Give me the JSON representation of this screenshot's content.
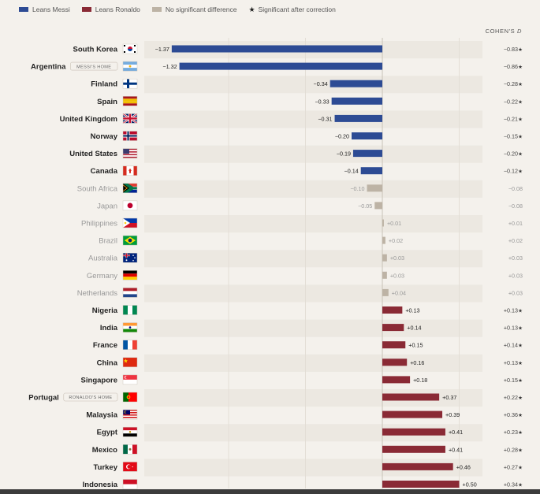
{
  "legend": {
    "messi": "Leans Messi",
    "ronaldo": "Leans Ronaldo",
    "ns": "No significant difference",
    "sig": "Significant after correction"
  },
  "colors": {
    "messi": "#2d4b94",
    "ronaldo": "#8a2a35",
    "ns": "#bdb3a5",
    "ns_text": "#999999",
    "bold_text": "#222222"
  },
  "cohen_label_prefix": "COHEN'S ",
  "cohen_label_var": "D",
  "chart_data": {
    "type": "bar",
    "orientation": "horizontal",
    "xlim": [
      -1.42,
      0.55
    ],
    "grid": true,
    "rows": [
      {
        "country": "South Korea",
        "value": -1.37,
        "label": "−1.37",
        "d": "−0.83",
        "sig": true,
        "group": "messi",
        "flag": "kr"
      },
      {
        "country": "Argentina",
        "value": -1.32,
        "label": "−1.32",
        "d": "−0.86",
        "sig": true,
        "group": "messi",
        "flag": "ar",
        "badge": "MESSI'S HOME"
      },
      {
        "country": "Finland",
        "value": -0.34,
        "label": "−0.34",
        "d": "−0.28",
        "sig": true,
        "group": "messi",
        "flag": "fi"
      },
      {
        "country": "Spain",
        "value": -0.33,
        "label": "−0.33",
        "d": "−0.22",
        "sig": true,
        "group": "messi",
        "flag": "es"
      },
      {
        "country": "United Kingdom",
        "value": -0.31,
        "label": "−0.31",
        "d": "−0.21",
        "sig": true,
        "group": "messi",
        "flag": "gb"
      },
      {
        "country": "Norway",
        "value": -0.2,
        "label": "−0.20",
        "d": "−0.15",
        "sig": true,
        "group": "messi",
        "flag": "no"
      },
      {
        "country": "United States",
        "value": -0.19,
        "label": "−0.19",
        "d": "−0.20",
        "sig": true,
        "group": "messi",
        "flag": "us"
      },
      {
        "country": "Canada",
        "value": -0.14,
        "label": "−0.14",
        "d": "−0.12",
        "sig": true,
        "group": "messi",
        "flag": "ca"
      },
      {
        "country": "South Africa",
        "value": -0.1,
        "label": "−0.10",
        "d": "−0.08",
        "sig": false,
        "group": "ns",
        "flag": "za"
      },
      {
        "country": "Japan",
        "value": -0.05,
        "label": "−0.05",
        "d": "−0.08",
        "sig": false,
        "group": "ns",
        "flag": "jp"
      },
      {
        "country": "Philippines",
        "value": 0.01,
        "label": "+0.01",
        "d": "+0.01",
        "sig": false,
        "group": "ns",
        "flag": "ph"
      },
      {
        "country": "Brazil",
        "value": 0.02,
        "label": "+0.02",
        "d": "+0.02",
        "sig": false,
        "group": "ns",
        "flag": "br"
      },
      {
        "country": "Australia",
        "value": 0.03,
        "label": "+0.03",
        "d": "+0.03",
        "sig": false,
        "group": "ns",
        "flag": "au"
      },
      {
        "country": "Germany",
        "value": 0.03,
        "label": "+0.03",
        "d": "+0.03",
        "sig": false,
        "group": "ns",
        "flag": "de"
      },
      {
        "country": "Netherlands",
        "value": 0.04,
        "label": "+0.04",
        "d": "+0.03",
        "sig": false,
        "group": "ns",
        "flag": "nl"
      },
      {
        "country": "Nigeria",
        "value": 0.13,
        "label": "+0.13",
        "d": "+0.13",
        "sig": true,
        "group": "ronaldo",
        "flag": "ng"
      },
      {
        "country": "India",
        "value": 0.14,
        "label": "+0.14",
        "d": "+0.13",
        "sig": true,
        "group": "ronaldo",
        "flag": "in"
      },
      {
        "country": "France",
        "value": 0.15,
        "label": "+0.15",
        "d": "+0.14",
        "sig": true,
        "group": "ronaldo",
        "flag": "fr"
      },
      {
        "country": "China",
        "value": 0.16,
        "label": "+0.16",
        "d": "+0.13",
        "sig": true,
        "group": "ronaldo",
        "flag": "cn"
      },
      {
        "country": "Singapore",
        "value": 0.18,
        "label": "+0.18",
        "d": "+0.15",
        "sig": true,
        "group": "ronaldo",
        "flag": "sg"
      },
      {
        "country": "Portugal",
        "value": 0.37,
        "label": "+0.37",
        "d": "+0.22",
        "sig": true,
        "group": "ronaldo",
        "flag": "pt",
        "badge": "RONALDO'S HOME"
      },
      {
        "country": "Malaysia",
        "value": 0.39,
        "label": "+0.39",
        "d": "+0.36",
        "sig": true,
        "group": "ronaldo",
        "flag": "my"
      },
      {
        "country": "Egypt",
        "value": 0.41,
        "label": "+0.41",
        "d": "+0.23",
        "sig": true,
        "group": "ronaldo",
        "flag": "eg"
      },
      {
        "country": "Mexico",
        "value": 0.41,
        "label": "+0.41",
        "d": "+0.28",
        "sig": true,
        "group": "ronaldo",
        "flag": "mx"
      },
      {
        "country": "Turkey",
        "value": 0.46,
        "label": "+0.46",
        "d": "+0.27",
        "sig": true,
        "group": "ronaldo",
        "flag": "tr"
      },
      {
        "country": "Indonesia",
        "value": 0.5,
        "label": "+0.50",
        "d": "+0.34",
        "sig": true,
        "group": "ronaldo",
        "flag": "id"
      }
    ]
  }
}
